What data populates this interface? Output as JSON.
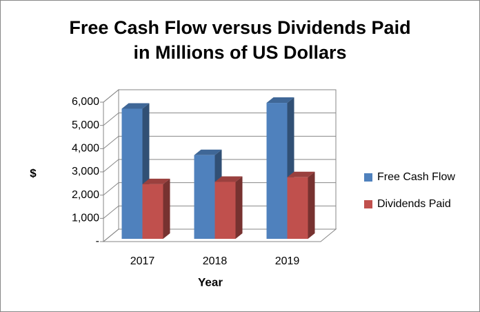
{
  "chart_data": {
    "type": "bar3d",
    "title": [
      "Free Cash Flow versus Dividends Paid",
      "in Millions of US Dollars"
    ],
    "x_label": "Year",
    "y_label": "$",
    "categories": [
      "2017",
      "2018",
      "2019"
    ],
    "series": [
      {
        "name": "Free Cash Flow",
        "color": "#4f81bd",
        "values": [
          5600,
          3600,
          5850
        ]
      },
      {
        "name": "Dividends Paid",
        "color": "#c0504d",
        "values": [
          2350,
          2450,
          2650
        ]
      }
    ],
    "ylim": [
      0,
      6000
    ],
    "yticks": [
      {
        "value": 0,
        "label": "-"
      },
      {
        "value": 1000,
        "label": "1,000"
      },
      {
        "value": 2000,
        "label": "2,000"
      },
      {
        "value": 3000,
        "label": "3,000"
      },
      {
        "value": 4000,
        "label": "4,000"
      },
      {
        "value": 5000,
        "label": "5,000"
      },
      {
        "value": 6000,
        "label": "6,000"
      }
    ],
    "grid": true,
    "legend": "right"
  }
}
